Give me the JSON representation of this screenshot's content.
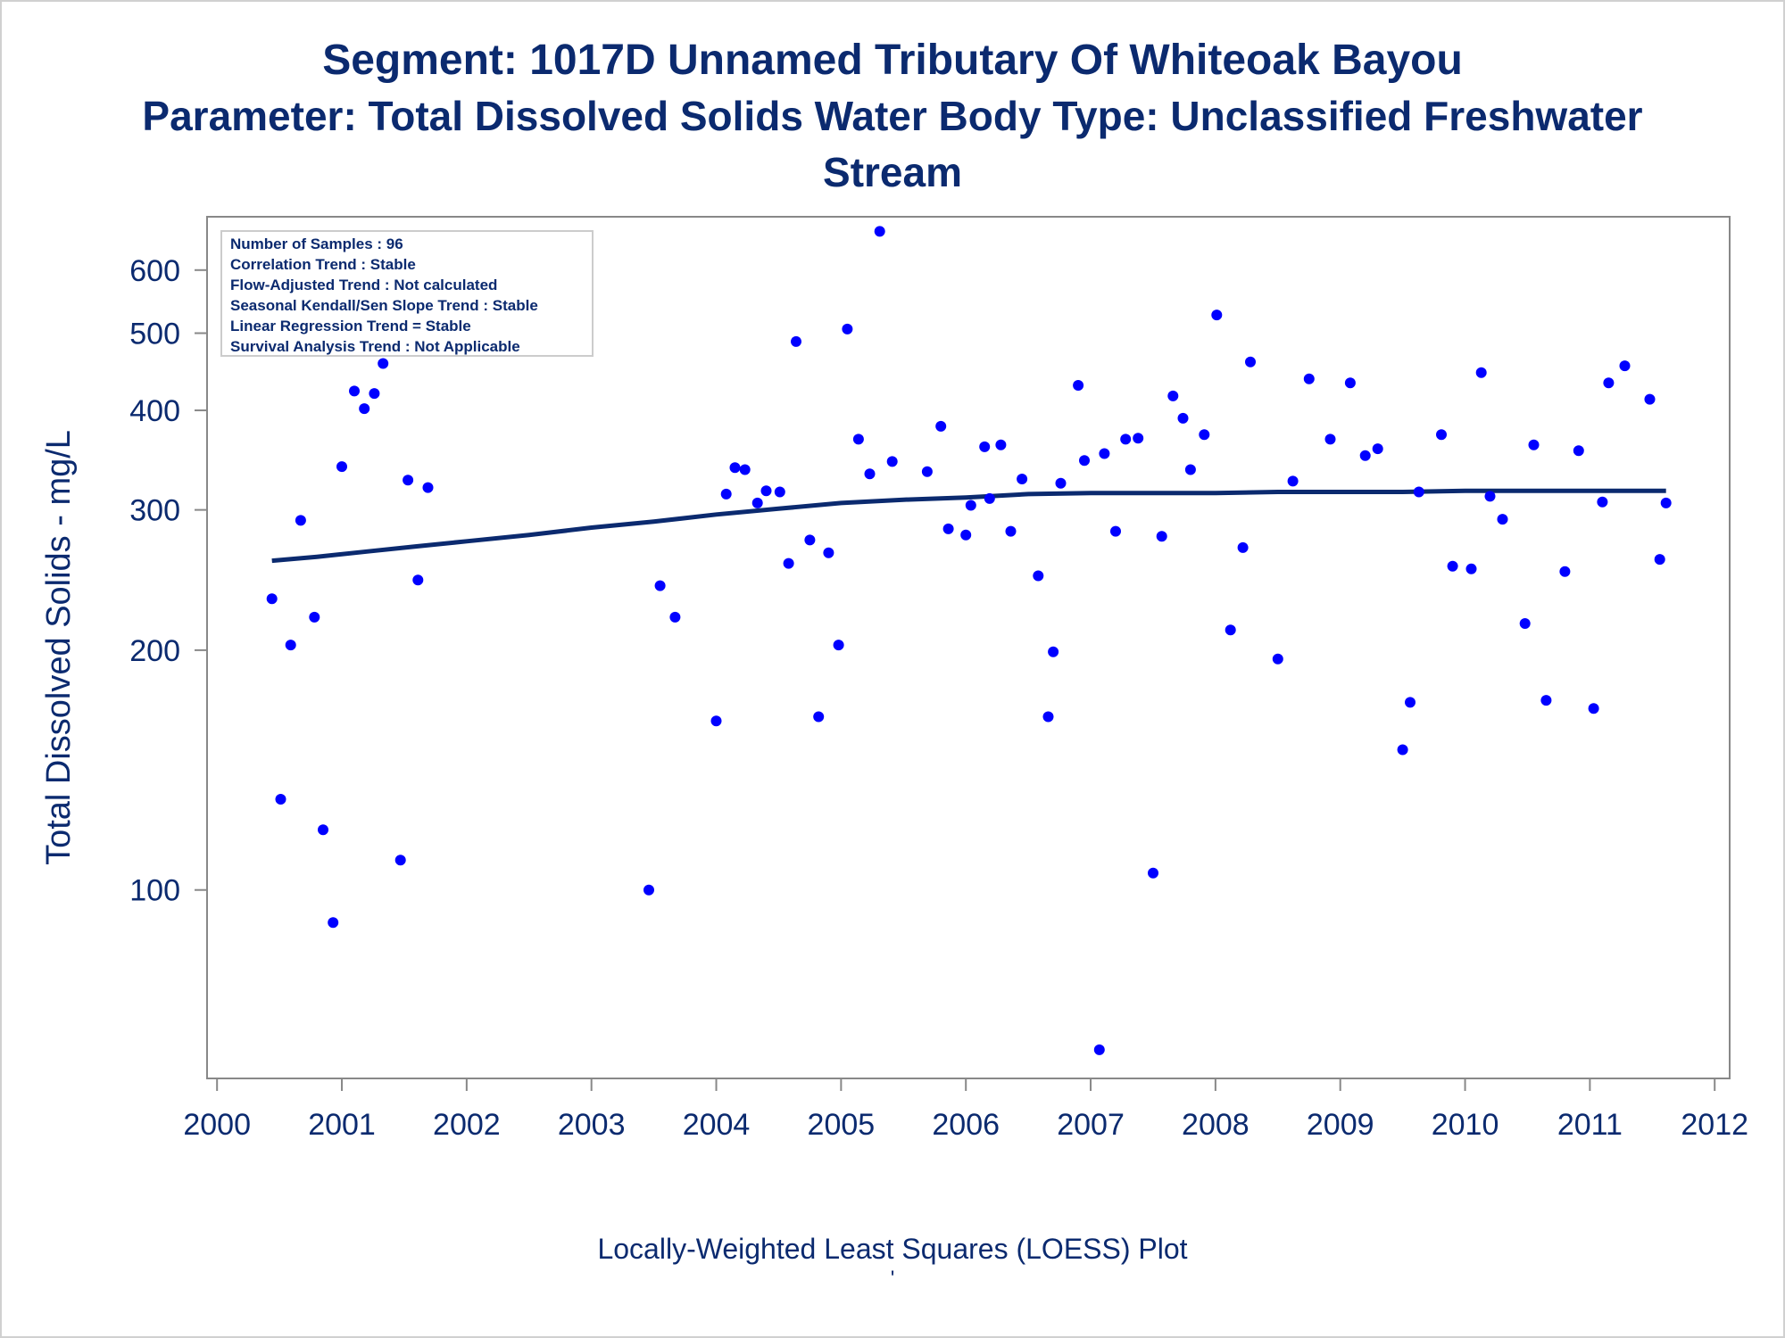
{
  "titles": {
    "line1": "Segment: 1017D  Unnamed Tributary Of Whiteoak Bayou",
    "line2": "Parameter: Total Dissolved Solids   Water Body Type: Unclassified Freshwater",
    "line3": "Stream"
  },
  "footnote": {
    "text": "Locally-Weighted Least Squares (LOESS) Plot",
    "tick": "'"
  },
  "colors": {
    "title": "#0b2a6f",
    "points": "#0000ff",
    "trend_line": "#0b2a6f",
    "axis": "#888888",
    "axis_label": "#0b2a6f",
    "tick_label": "#0b2a6f"
  },
  "chart_data": {
    "type": "scatter",
    "xlabel": "",
    "ylabel": "Total Dissolved Solids - mg/L",
    "xscale": "linear",
    "yscale": "log",
    "xlim": [
      1999.92,
      2012.12
    ],
    "ylim": [
      58,
      700
    ],
    "xticks": [
      2000,
      2001,
      2002,
      2003,
      2004,
      2005,
      2006,
      2007,
      2008,
      2009,
      2010,
      2011,
      2012
    ],
    "xtick_labels": [
      "2000",
      "2001",
      "2002",
      "2003",
      "2004",
      "2005",
      "2006",
      "2007",
      "2008",
      "2009",
      "2010",
      "2011",
      "2012"
    ],
    "yticks": [
      100,
      200,
      300,
      400,
      500,
      600
    ],
    "ytick_labels": [
      "100",
      "200",
      "300",
      "400",
      "500",
      "600"
    ],
    "grid": false,
    "legend": null,
    "stats_box": {
      "placement": "top-left",
      "lines": [
        "Number of Samples : 96",
        "Correlation Trend : Stable",
        "Flow-Adjusted Trend : Not calculated",
        "Seasonal Kendall/Sen Slope Trend : Stable",
        "Linear Regression Trend = Stable",
        "Survival Analysis Trend : Not Applicable"
      ]
    },
    "series": [
      {
        "kind": "points",
        "points": [
          [
            2000.44,
            232
          ],
          [
            2000.51,
            130
          ],
          [
            2000.59,
            203
          ],
          [
            2000.67,
            291
          ],
          [
            2000.78,
            220
          ],
          [
            2000.85,
            119
          ],
          [
            2000.93,
            91
          ],
          [
            2001.0,
            340
          ],
          [
            2001.1,
            423
          ],
          [
            2001.18,
            402
          ],
          [
            2001.26,
            420
          ],
          [
            2001.33,
            458
          ],
          [
            2001.47,
            109
          ],
          [
            2001.53,
            327
          ],
          [
            2001.61,
            245
          ],
          [
            2001.69,
            320
          ],
          [
            2003.46,
            100
          ],
          [
            2003.55,
            241
          ],
          [
            2003.67,
            220
          ],
          [
            2004.0,
            163
          ],
          [
            2004.08,
            314
          ],
          [
            2004.15,
            339
          ],
          [
            2004.23,
            337
          ],
          [
            2004.33,
            306
          ],
          [
            2004.4,
            317
          ],
          [
            2004.51,
            316
          ],
          [
            2004.58,
            257
          ],
          [
            2004.64,
            488
          ],
          [
            2004.75,
            275
          ],
          [
            2004.82,
            165
          ],
          [
            2004.9,
            265
          ],
          [
            2004.98,
            203
          ],
          [
            2005.05,
            506
          ],
          [
            2005.14,
            368
          ],
          [
            2005.23,
            333
          ],
          [
            2005.31,
            671
          ],
          [
            2005.41,
            345
          ],
          [
            2005.69,
            335
          ],
          [
            2005.8,
            382
          ],
          [
            2005.86,
            284
          ],
          [
            2006.0,
            279
          ],
          [
            2006.04,
            304
          ],
          [
            2006.15,
            360
          ],
          [
            2006.19,
            310
          ],
          [
            2006.28,
            362
          ],
          [
            2006.36,
            282
          ],
          [
            2006.45,
            328
          ],
          [
            2006.58,
            248
          ],
          [
            2006.66,
            165
          ],
          [
            2006.7,
            199
          ],
          [
            2006.76,
            324
          ],
          [
            2006.9,
            430
          ],
          [
            2006.95,
            346
          ],
          [
            2007.07,
            63
          ],
          [
            2007.11,
            353
          ],
          [
            2007.2,
            282
          ],
          [
            2007.28,
            368
          ],
          [
            2007.38,
            369
          ],
          [
            2007.5,
            105
          ],
          [
            2007.57,
            278
          ],
          [
            2007.66,
            417
          ],
          [
            2007.74,
            391
          ],
          [
            2007.8,
            337
          ],
          [
            2007.91,
            373
          ],
          [
            2008.01,
            527
          ],
          [
            2008.12,
            212
          ],
          [
            2008.22,
            269
          ],
          [
            2008.28,
            460
          ],
          [
            2008.5,
            195
          ],
          [
            2008.62,
            326
          ],
          [
            2008.75,
            438
          ],
          [
            2008.92,
            368
          ],
          [
            2009.08,
            433
          ],
          [
            2009.2,
            351
          ],
          [
            2009.3,
            358
          ],
          [
            2009.5,
            150
          ],
          [
            2009.56,
            172
          ],
          [
            2009.63,
            316
          ],
          [
            2009.81,
            373
          ],
          [
            2009.9,
            255
          ],
          [
            2010.05,
            253
          ],
          [
            2010.13,
            446
          ],
          [
            2010.2,
            312
          ],
          [
            2010.3,
            292
          ],
          [
            2010.48,
            216
          ],
          [
            2010.55,
            362
          ],
          [
            2010.65,
            173
          ],
          [
            2010.8,
            251
          ],
          [
            2010.91,
            356
          ],
          [
            2011.03,
            169
          ],
          [
            2011.1,
            307
          ],
          [
            2011.15,
            433
          ],
          [
            2011.28,
            455
          ],
          [
            2011.48,
            413
          ],
          [
            2011.56,
            260
          ],
          [
            2011.61,
            306
          ]
        ]
      },
      {
        "kind": "loess",
        "points": [
          [
            2000.44,
            259
          ],
          [
            2000.8,
            262
          ],
          [
            2001.2,
            266
          ],
          [
            2001.6,
            270
          ],
          [
            2002.0,
            274
          ],
          [
            2002.5,
            279
          ],
          [
            2003.0,
            285
          ],
          [
            2003.5,
            290
          ],
          [
            2004.0,
            296
          ],
          [
            2004.5,
            301
          ],
          [
            2005.0,
            306
          ],
          [
            2005.5,
            309
          ],
          [
            2006.0,
            311
          ],
          [
            2006.5,
            314
          ],
          [
            2007.0,
            315
          ],
          [
            2007.5,
            315
          ],
          [
            2008.0,
            315
          ],
          [
            2008.5,
            316
          ],
          [
            2009.0,
            316
          ],
          [
            2009.5,
            316
          ],
          [
            2010.0,
            317
          ],
          [
            2010.5,
            317
          ],
          [
            2011.0,
            317
          ],
          [
            2011.61,
            317
          ]
        ]
      }
    ]
  }
}
